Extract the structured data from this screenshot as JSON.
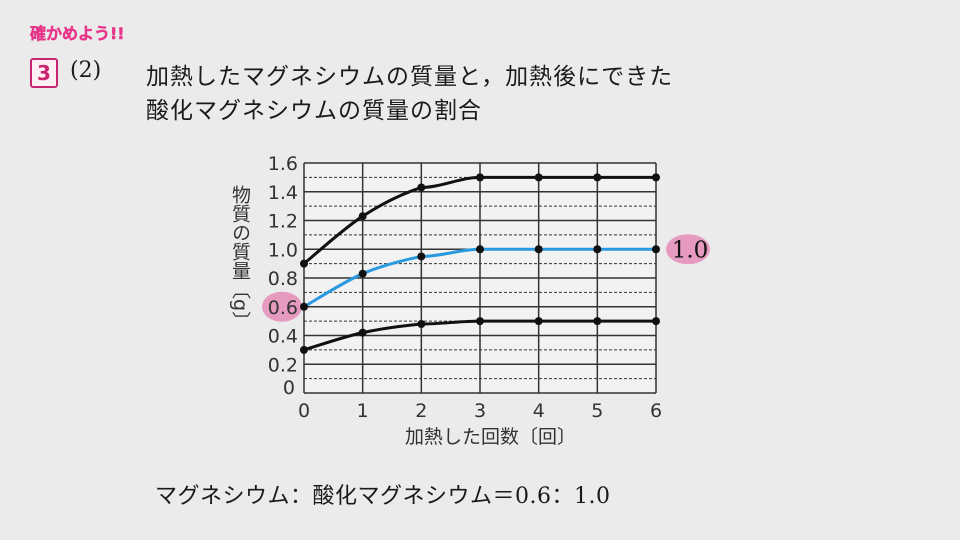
{
  "header": {
    "badge": "確かめよう!!",
    "question_number": "3",
    "sub_number": "(2)",
    "title_line1": "加熱したマグネシウムの質量と，加熱後にできた",
    "title_line2": "酸化マグネシウムの質量の割合"
  },
  "answer": "マグネシウム：酸化マグネシウム＝0.6：1.0",
  "colors": {
    "accent": "#e8378a",
    "blue": "#2a9ae0",
    "highlight": "#e58cb8"
  },
  "chart_data": {
    "type": "line",
    "xlabel": "加熱した回数〔回〕",
    "ylabel": "物質の質量〔g〕",
    "x": [
      0,
      1,
      2,
      3,
      4,
      5,
      6
    ],
    "xlim": [
      0,
      6
    ],
    "ylim": [
      0,
      1.6
    ],
    "xticks": [
      "0",
      "1",
      "2",
      "3",
      "4",
      "5",
      "6"
    ],
    "yticks": [
      "0",
      "0.2",
      "0.4",
      "0.6",
      "0.8",
      "1.0",
      "1.2",
      "1.4",
      "1.6"
    ],
    "grid": true,
    "series": [
      {
        "name": "upper",
        "color": "#111111",
        "values": [
          0.9,
          1.23,
          1.43,
          1.5,
          1.5,
          1.5,
          1.5
        ]
      },
      {
        "name": "middle",
        "color": "#2a9ae0",
        "values": [
          0.6,
          0.83,
          0.95,
          1.0,
          1.0,
          1.0,
          1.0
        ]
      },
      {
        "name": "lower",
        "color": "#111111",
        "values": [
          0.3,
          0.42,
          0.48,
          0.5,
          0.5,
          0.5,
          0.5
        ]
      }
    ],
    "annotations": {
      "left": "0.6",
      "right": "1.0"
    }
  }
}
